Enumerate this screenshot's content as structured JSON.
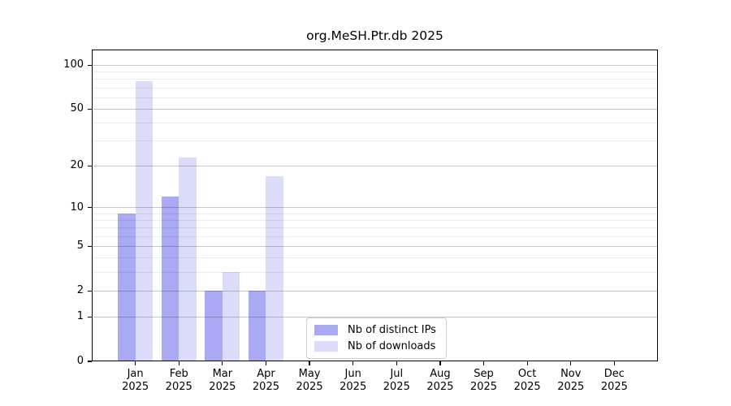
{
  "chart_data": {
    "type": "bar",
    "title": "org.MeSH.Ptr.db 2025",
    "categories": [
      "Jan",
      "Feb",
      "Mar",
      "Apr",
      "May",
      "Jun",
      "Jul",
      "Aug",
      "Sep",
      "Oct",
      "Nov",
      "Dec"
    ],
    "year_label": "2025",
    "series": [
      {
        "name": "Nb of distinct IPs",
        "color": "#a9a9f4",
        "values": [
          9,
          12,
          2,
          2,
          0,
          0,
          0,
          0,
          0,
          0,
          0,
          0
        ]
      },
      {
        "name": "Nb of downloads",
        "color": "#dbdbfa",
        "values": [
          78,
          23,
          3,
          17,
          0,
          0,
          0,
          0,
          0,
          0,
          0,
          0
        ]
      }
    ],
    "xlabel": "",
    "ylabel": "",
    "yscale": "log1p",
    "ylim": [
      0,
      128
    ],
    "yticks": [
      0,
      1,
      2,
      5,
      10,
      20,
      50,
      100
    ],
    "minor_yticks": [
      3,
      4,
      6,
      7,
      8,
      9,
      30,
      40,
      60,
      70,
      80,
      90
    ],
    "grid": true,
    "grid_over_bars": true,
    "legend_position": "inside lower-center-left",
    "colors": {
      "major_grid": "#c9c9c9",
      "minor_grid": "#ececec",
      "spine": "#000000",
      "text": "#000000",
      "background": "#ffffff"
    }
  }
}
